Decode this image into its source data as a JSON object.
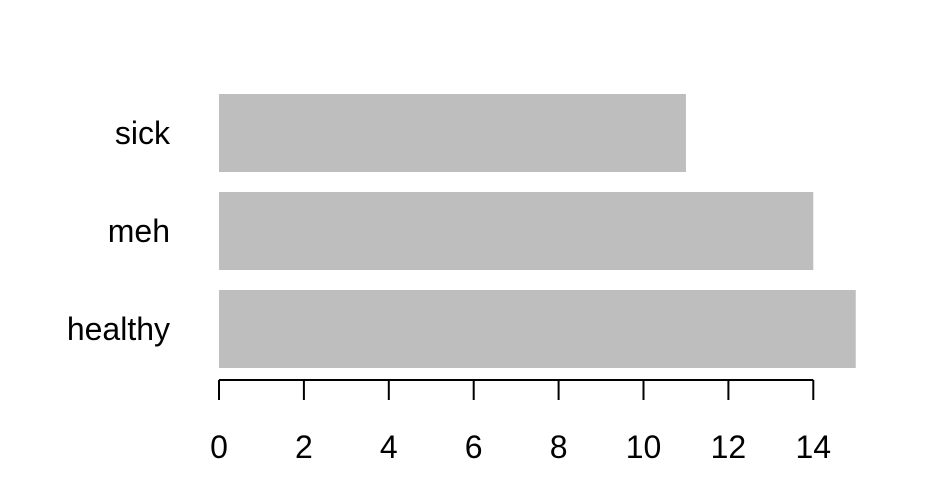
{
  "chart_data": {
    "type": "bar",
    "orientation": "horizontal",
    "categories": [
      "sick",
      "meh",
      "healthy"
    ],
    "values": [
      11,
      14,
      15
    ],
    "title": "",
    "xlabel": "",
    "ylabel": "",
    "xlim": [
      0,
      15
    ],
    "x_ticks": [
      "0",
      "2",
      "4",
      "6",
      "8",
      "10",
      "12",
      "14"
    ],
    "bar_color": "#bebebe",
    "axis_color": "#000000",
    "grid": false,
    "legend": "none"
  }
}
